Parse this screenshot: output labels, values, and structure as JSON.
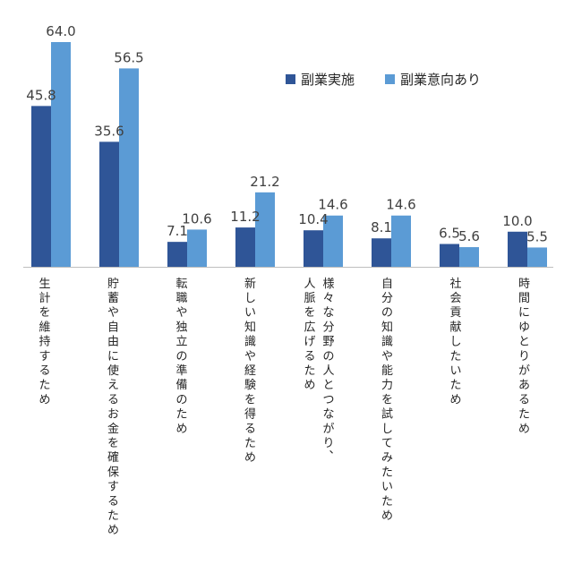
{
  "chart_data": {
    "type": "bar",
    "categories": [
      "生計を維持するため",
      "貯蓄や自由に使えるお金を確保するため",
      "転職や独立の準備のため",
      "新しい知識や経験を得るため",
      "様々な分野の人とつながり、人脈を広げるため",
      "自分の知識や能力を試してみたいため",
      "社会貢献したいため",
      "時間にゆとりがあるため"
    ],
    "series": [
      {
        "name": "副業実施",
        "values": [
          45.8,
          35.6,
          7.1,
          11.2,
          10.4,
          8.1,
          6.5,
          10.0
        ],
        "labels": [
          "45.8",
          "35.6",
          "7.1",
          "11.2",
          "10.4",
          "8.1",
          "6.5",
          "10.0"
        ],
        "color": "#2f5597"
      },
      {
        "name": "副業意向あり",
        "values": [
          64.0,
          56.5,
          10.6,
          21.2,
          14.6,
          14.6,
          5.6,
          5.5
        ],
        "labels": [
          "64.0",
          "56.5",
          "10.6",
          "21.2",
          "14.6",
          "14.6",
          "5.6",
          "5.5"
        ],
        "color": "#5b9bd5"
      }
    ],
    "ylim": [
      0,
      64
    ],
    "grid": false,
    "legend": "top-right",
    "baseline_color": "#bfbfbf"
  }
}
